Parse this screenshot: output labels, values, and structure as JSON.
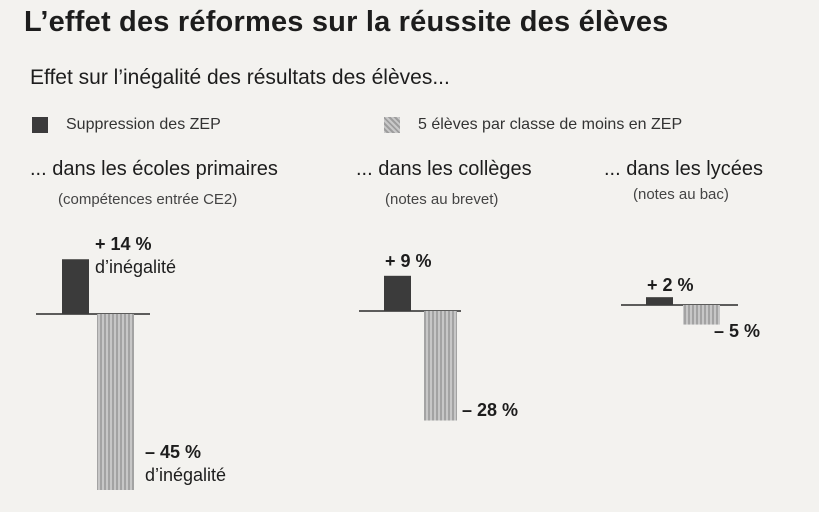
{
  "title": "L’effet des réformes sur la réussite des élèves",
  "subtitle": "Effet sur l’inégalité  des résultats des élèves...",
  "legend": [
    {
      "label": "Suppression des ZEP",
      "color": "#3b3b3b"
    },
    {
      "label": "5 élèves par classe de moins en ZEP",
      "color": "#b3b3b3"
    }
  ],
  "chart_data": {
    "type": "bar",
    "series_names": [
      "Suppression des ZEP",
      "5 élèves par classe de moins en ZEP"
    ],
    "unit": "%",
    "panels": [
      {
        "title": "... dans les écoles primaires",
        "subtitle": "(compétences entrée CE2)",
        "values": [
          14,
          -45
        ],
        "labels": [
          "+ 14 %",
          "– 45 %"
        ],
        "sublabels": [
          "d’inégalité",
          "d’inégalité"
        ]
      },
      {
        "title": "... dans les collèges",
        "subtitle": "(notes au brevet)",
        "values": [
          9,
          -28
        ],
        "labels": [
          "+ 9 %",
          "– 28 %"
        ],
        "sublabels": [
          "",
          ""
        ]
      },
      {
        "title": "... dans les lycées",
        "subtitle": "(notes au bac)",
        "values": [
          2,
          -5
        ],
        "labels": [
          "+ 2 %",
          "– 5 %"
        ],
        "sublabels": [
          "",
          ""
        ]
      }
    ],
    "colors": {
      "dark": "#3b3b3b",
      "light": "#b3b3b3"
    }
  }
}
